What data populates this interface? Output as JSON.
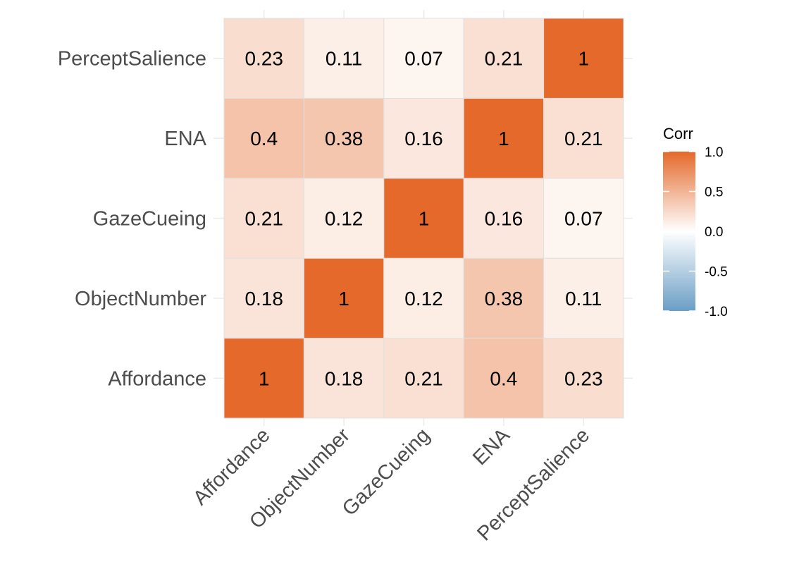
{
  "chart_data": {
    "type": "heatmap",
    "title": "",
    "variables": [
      "Affordance",
      "ObjectNumber",
      "GazeCueing",
      "ENA",
      "PerceptSalience"
    ],
    "matrix": [
      [
        1,
        0.18,
        0.21,
        0.4,
        0.23
      ],
      [
        0.18,
        1,
        0.12,
        0.38,
        0.11
      ],
      [
        0.21,
        0.12,
        1,
        0.16,
        0.07
      ],
      [
        0.4,
        0.38,
        0.16,
        1,
        0.21
      ],
      [
        0.23,
        0.11,
        0.07,
        0.21,
        1
      ]
    ],
    "color_scale": {
      "low": "#6a9ec5",
      "mid": "#ffffff",
      "high": "#e4692a",
      "limits": [
        -1,
        1
      ]
    },
    "legend": {
      "title": "Corr",
      "ticks": [
        1.0,
        0.5,
        0.0,
        -0.5,
        -1.0
      ],
      "tick_labels": [
        "1.0",
        "0.5",
        "0.0",
        "-0.5",
        "-1.0"
      ],
      "position": "right"
    },
    "grid": true,
    "x_tick_rotation_deg": 45
  }
}
